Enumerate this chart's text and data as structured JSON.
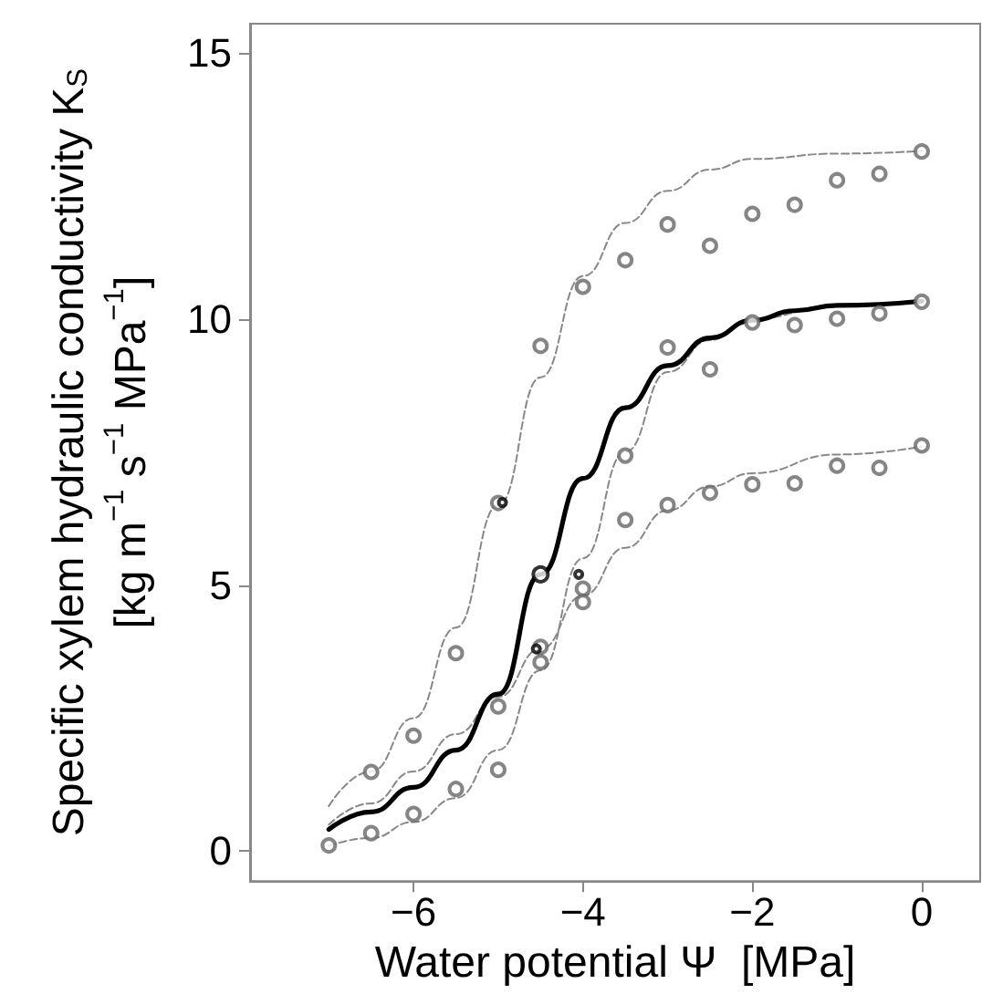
{
  "chart_data": {
    "type": "scatter",
    "xlabel": "Water potential Ψ  [MPa]",
    "ylabel": "Specific xylem hydraulic conductivity K$_{S}$\n[kg m$^{−1}$ s$^{−1}$ MPa$^{−1}$]",
    "xlim": [
      -7.93,
      0.69
    ],
    "ylim": [
      -0.56,
      15.54
    ],
    "xticks": [
      -6,
      -4,
      -2,
      0
    ],
    "yticks": [
      0,
      5,
      10,
      15
    ],
    "grid": false,
    "legend": false,
    "marker": "circle",
    "series": [
      {
        "color": "#666666",
        "x": [
          -6.5,
          -6,
          -5.5,
          -5,
          -4.5,
          -4,
          -3.5,
          -3,
          -2.5,
          -2,
          -1.5,
          -1,
          -0.5,
          0
        ],
        "values": [
          1.49,
          2.17,
          3.72,
          6.54,
          9.49,
          10.6,
          11.1,
          11.77,
          11.37,
          11.97,
          12.14,
          12.6,
          12.72,
          13.14
        ]
      },
      {
        "color": "#666666",
        "x": [
          -7,
          -6.5,
          -6,
          -5.5,
          -5,
          -4.5,
          -4,
          -3.5,
          -3,
          -2.5,
          -2,
          -1.5,
          -1,
          -0.5,
          0
        ],
        "values": [
          0.11,
          0.34,
          0.7,
          1.17,
          1.53,
          3.55,
          4.93,
          7.43,
          9.46,
          9.05,
          9.93,
          9.88,
          10.0,
          10.1,
          10.32
        ]
      },
      {
        "color": "#666666",
        "x": [
          -5,
          -4.5,
          -4,
          -3.5,
          -3,
          -2.5,
          -2,
          -1.5,
          -1,
          -0.5,
          0
        ],
        "values": [
          2.72,
          3.84,
          4.68,
          6.22,
          6.5,
          6.73,
          6.89,
          6.91,
          7.24,
          7.2,
          7.62
        ]
      },
      {
        "type": "line",
        "color": "#888888",
        "line_style": "dashed",
        "marker": "none",
        "x": [
          -7,
          -6.5,
          -6,
          -5.5,
          -5,
          -4.5,
          -4,
          -3.5,
          -3,
          -2.5,
          -2,
          -1,
          0
        ],
        "values": [
          0.85,
          1.5,
          2.5,
          4.2,
          6.5,
          8.9,
          10.8,
          11.8,
          12.4,
          12.8,
          13.0,
          13.1,
          13.15
        ]
      },
      {
        "type": "line",
        "color": "#888888",
        "line_style": "dashed",
        "marker": "none",
        "x": [
          -7,
          -6.5,
          -6,
          -5.5,
          -5,
          -4.5,
          -4,
          -3.5,
          -3,
          -2.5,
          -2,
          -1,
          0
        ],
        "values": [
          0.1,
          0.25,
          0.55,
          1.0,
          1.9,
          3.4,
          5.5,
          7.5,
          9.0,
          9.6,
          10.0,
          10.25,
          10.33
        ]
      },
      {
        "type": "line",
        "color": "#888888",
        "line_style": "dashed",
        "marker": "none",
        "x": [
          -7,
          -6.5,
          -6,
          -5.5,
          -5,
          -4.5,
          -4,
          -3.5,
          -3,
          -2.5,
          -2,
          -1,
          0
        ],
        "values": [
          0.5,
          0.9,
          1.5,
          2.2,
          2.9,
          3.8,
          4.8,
          5.7,
          6.4,
          6.85,
          7.1,
          7.45,
          7.6
        ]
      },
      {
        "type": "line",
        "color": "#000000",
        "line_style": "solid",
        "marker": "none",
        "x": [
          -7,
          -6.5,
          -6,
          -5.5,
          -5,
          -4.5,
          -4,
          -3.5,
          -3,
          -2.5,
          -2,
          -1.5,
          -1,
          0
        ],
        "values": [
          0.41,
          0.74,
          1.2,
          1.9,
          2.95,
          5.2,
          7.0,
          8.33,
          9.12,
          9.64,
          9.97,
          10.15,
          10.25,
          10.33
        ]
      },
      {
        "color": "#000000",
        "x": [
          -4.95,
          -4.55,
          -4.05
        ],
        "values": [
          6.55,
          3.8,
          5.2
        ]
      },
      {
        "color": "#000000",
        "x": [
          -4.5
        ],
        "values": [
          5.2
        ]
      }
    ]
  }
}
